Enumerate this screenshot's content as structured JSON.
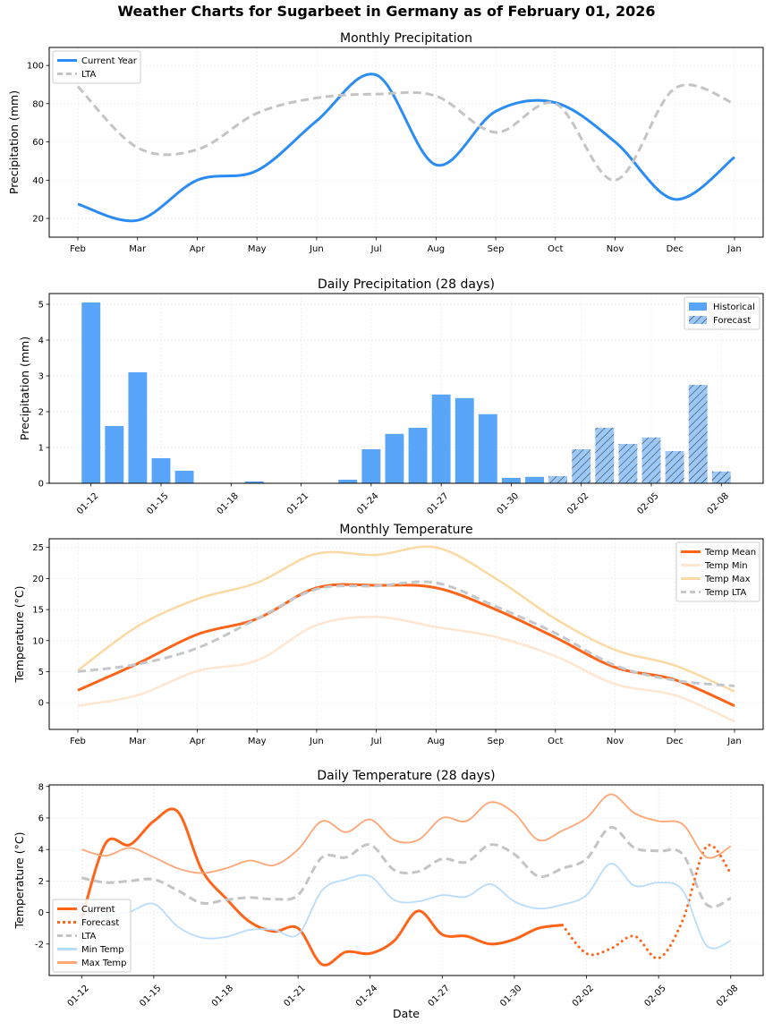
{
  "figure_title": "Weather Charts for Sugarbeet in Germany as of February 01, 2026",
  "chart_data": [
    {
      "type": "line",
      "title": "Monthly Precipitation",
      "xlabel": "",
      "ylabel": "Precipitation (mm)",
      "categories": [
        "Feb",
        "Mar",
        "Apr",
        "May",
        "Jun",
        "Jul",
        "Aug",
        "Sep",
        "Oct",
        "Nov",
        "Dec",
        "Jan"
      ],
      "ylim": [
        10.2,
        109.4
      ],
      "yticks": [
        20,
        40,
        60,
        80,
        100
      ],
      "grid": true,
      "legend_position": "top-left",
      "series": [
        {
          "name": "Current Year",
          "values": [
            27.5,
            19,
            40,
            45,
            71,
            95,
            48,
            76,
            80.5,
            60,
            30,
            52
          ],
          "color": "#2b8cf5",
          "style": "solid"
        },
        {
          "name": "LTA",
          "values": [
            89,
            57,
            56,
            75,
            83,
            85,
            84,
            65,
            80,
            40,
            88,
            80
          ],
          "color": "#c4c4c4",
          "style": "dashed"
        }
      ]
    },
    {
      "type": "bar",
      "title": "Daily Precipitation (28 days)",
      "xlabel": "",
      "ylabel": "Precipitation (mm)",
      "categories": [
        "01-12",
        "01-13",
        "01-14",
        "01-15",
        "01-16",
        "01-17",
        "01-18",
        "01-19",
        "01-20",
        "01-21",
        "01-22",
        "01-23",
        "01-24",
        "01-25",
        "01-26",
        "01-27",
        "01-28",
        "01-29",
        "01-30",
        "01-31",
        "02-01",
        "02-02",
        "02-03",
        "02-04",
        "02-05",
        "02-06",
        "02-07",
        "02-08"
      ],
      "xtick_labels": [
        "01-12",
        "01-15",
        "01-18",
        "01-21",
        "01-24",
        "01-27",
        "01-30",
        "02-02",
        "02-05",
        "02-08"
      ],
      "ylim": [
        0,
        5.3
      ],
      "yticks": [
        0,
        1,
        2,
        3,
        4,
        5
      ],
      "grid": true,
      "legend_position": "top-right",
      "series": [
        {
          "name": "Historical",
          "color": "#58a5fa",
          "hatch": false,
          "values": [
            5.05,
            1.6,
            3.1,
            0.7,
            0.35,
            0,
            0,
            0.05,
            0,
            0,
            0,
            0.1,
            0.95,
            1.38,
            1.55,
            2.48,
            2.38,
            1.93,
            0.15,
            0.18,
            null,
            null,
            null,
            null,
            null,
            null,
            null,
            null
          ]
        },
        {
          "name": "Forecast",
          "color": "#9cc8f7",
          "hatch": true,
          "values": [
            null,
            null,
            null,
            null,
            null,
            null,
            null,
            null,
            null,
            null,
            null,
            null,
            null,
            null,
            null,
            null,
            null,
            null,
            null,
            null,
            0.2,
            0.95,
            1.55,
            1.1,
            1.28,
            0.9,
            2.75,
            0.33
          ]
        }
      ]
    },
    {
      "type": "line",
      "title": "Monthly Temperature",
      "xlabel": "",
      "ylabel": "Temperature (°C)",
      "categories": [
        "Feb",
        "Mar",
        "Apr",
        "May",
        "Jun",
        "Jul",
        "Aug",
        "Sep",
        "Oct",
        "Nov",
        "Dec",
        "Jan"
      ],
      "ylim": [
        -4.3,
        26.4
      ],
      "yticks": [
        0,
        5,
        10,
        15,
        20,
        25
      ],
      "grid": true,
      "legend_position": "top-right",
      "series": [
        {
          "name": "Temp Mean",
          "values": [
            2,
            6.3,
            11,
            13.5,
            18.5,
            18.9,
            18.5,
            15,
            10.5,
            5.7,
            3.7,
            -0.5
          ],
          "color": "#ff6418",
          "style": "solid"
        },
        {
          "name": "Temp Min",
          "values": [
            -0.5,
            1.2,
            5.1,
            6.8,
            12.5,
            13.8,
            12.2,
            10.6,
            7.5,
            3.0,
            1.2,
            -3.0
          ],
          "color": "#ffe6d0",
          "style": "solid"
        },
        {
          "name": "Temp Max",
          "values": [
            5.2,
            12.3,
            16.7,
            19.3,
            24.0,
            23.8,
            25.0,
            20.0,
            13.5,
            8.5,
            6.0,
            1.8
          ],
          "color": "#fbd9a3",
          "style": "solid"
        },
        {
          "name": "Temp LTA",
          "values": [
            5.0,
            6.2,
            8.8,
            13.5,
            18.3,
            18.8,
            19.3,
            15.5,
            11.2,
            6.0,
            3.6,
            2.7
          ],
          "color": "#c4c8cc",
          "style": "dashed"
        }
      ]
    },
    {
      "type": "line",
      "title": "Daily Temperature (28 days)",
      "xlabel": "Date",
      "ylabel": "Temperature (°C)",
      "categories": [
        "01-12",
        "01-13",
        "01-14",
        "01-15",
        "01-16",
        "01-17",
        "01-18",
        "01-19",
        "01-20",
        "01-21",
        "01-22",
        "01-23",
        "01-24",
        "01-25",
        "01-26",
        "01-27",
        "01-28",
        "01-29",
        "01-30",
        "01-31",
        "02-01",
        "02-02",
        "02-03",
        "02-04",
        "02-05",
        "02-06",
        "02-07",
        "02-08"
      ],
      "xtick_labels": [
        "01-12",
        "01-15",
        "01-18",
        "01-21",
        "01-24",
        "01-27",
        "01-30",
        "02-02",
        "02-05",
        "02-08"
      ],
      "ylim": [
        -4.0,
        8.1
      ],
      "yticks": [
        -2,
        0,
        2,
        4,
        6,
        8
      ],
      "grid": true,
      "legend_position": "bottom-left",
      "series": [
        {
          "name": "Current",
          "color": "#ff6418",
          "style": "solid",
          "values": [
            -0.4,
            4.4,
            4.3,
            5.8,
            6.4,
            2.7,
            0.9,
            -0.6,
            -1.2,
            -1.0,
            -3.3,
            -2.5,
            -2.6,
            -1.8,
            0.1,
            -1.4,
            -1.5,
            -2.0,
            -1.7,
            -1.0,
            -0.8,
            null,
            null,
            null,
            null,
            null,
            null,
            null
          ]
        },
        {
          "name": "Forecast",
          "color": "#ff6418",
          "style": "dotted",
          "values": [
            null,
            null,
            null,
            null,
            null,
            null,
            null,
            null,
            null,
            null,
            null,
            null,
            null,
            null,
            null,
            null,
            null,
            null,
            null,
            null,
            -0.8,
            -2.6,
            -2.3,
            -1.5,
            -2.9,
            -0.5,
            4.2,
            2.5
          ]
        },
        {
          "name": "LTA",
          "color": "#c4c4c4",
          "style": "dashed",
          "values": [
            2.2,
            1.9,
            2.0,
            2.1,
            1.4,
            0.6,
            0.8,
            0.95,
            0.85,
            1.1,
            3.5,
            3.5,
            4.3,
            2.7,
            2.6,
            3.4,
            3.2,
            4.3,
            3.7,
            2.3,
            2.8,
            3.4,
            5.4,
            4.1,
            3.9,
            3.7,
            0.5,
            0.9
          ]
        },
        {
          "name": "Min Temp",
          "color": "#b8dcfc",
          "style": "solid",
          "values": [
            -0.3,
            -0.2,
            0.05,
            0.55,
            -0.9,
            -1.6,
            -1.55,
            -1.1,
            -1.1,
            -1.4,
            1.4,
            2.1,
            2.3,
            0.8,
            0.7,
            1.1,
            1.0,
            1.8,
            0.7,
            0.25,
            0.5,
            1.1,
            3.1,
            1.7,
            1.9,
            1.4,
            -2.1,
            -1.8
          ]
        },
        {
          "name": "Max Temp",
          "color": "#ffa574",
          "style": "solid",
          "values": [
            4.0,
            3.6,
            4.1,
            3.5,
            2.8,
            2.5,
            2.8,
            3.3,
            3.0,
            4.0,
            5.8,
            5.1,
            5.9,
            4.6,
            4.6,
            6.0,
            5.8,
            7.0,
            6.3,
            4.6,
            5.2,
            6.0,
            7.5,
            6.3,
            5.8,
            5.6,
            3.5,
            4.2
          ]
        }
      ]
    }
  ]
}
